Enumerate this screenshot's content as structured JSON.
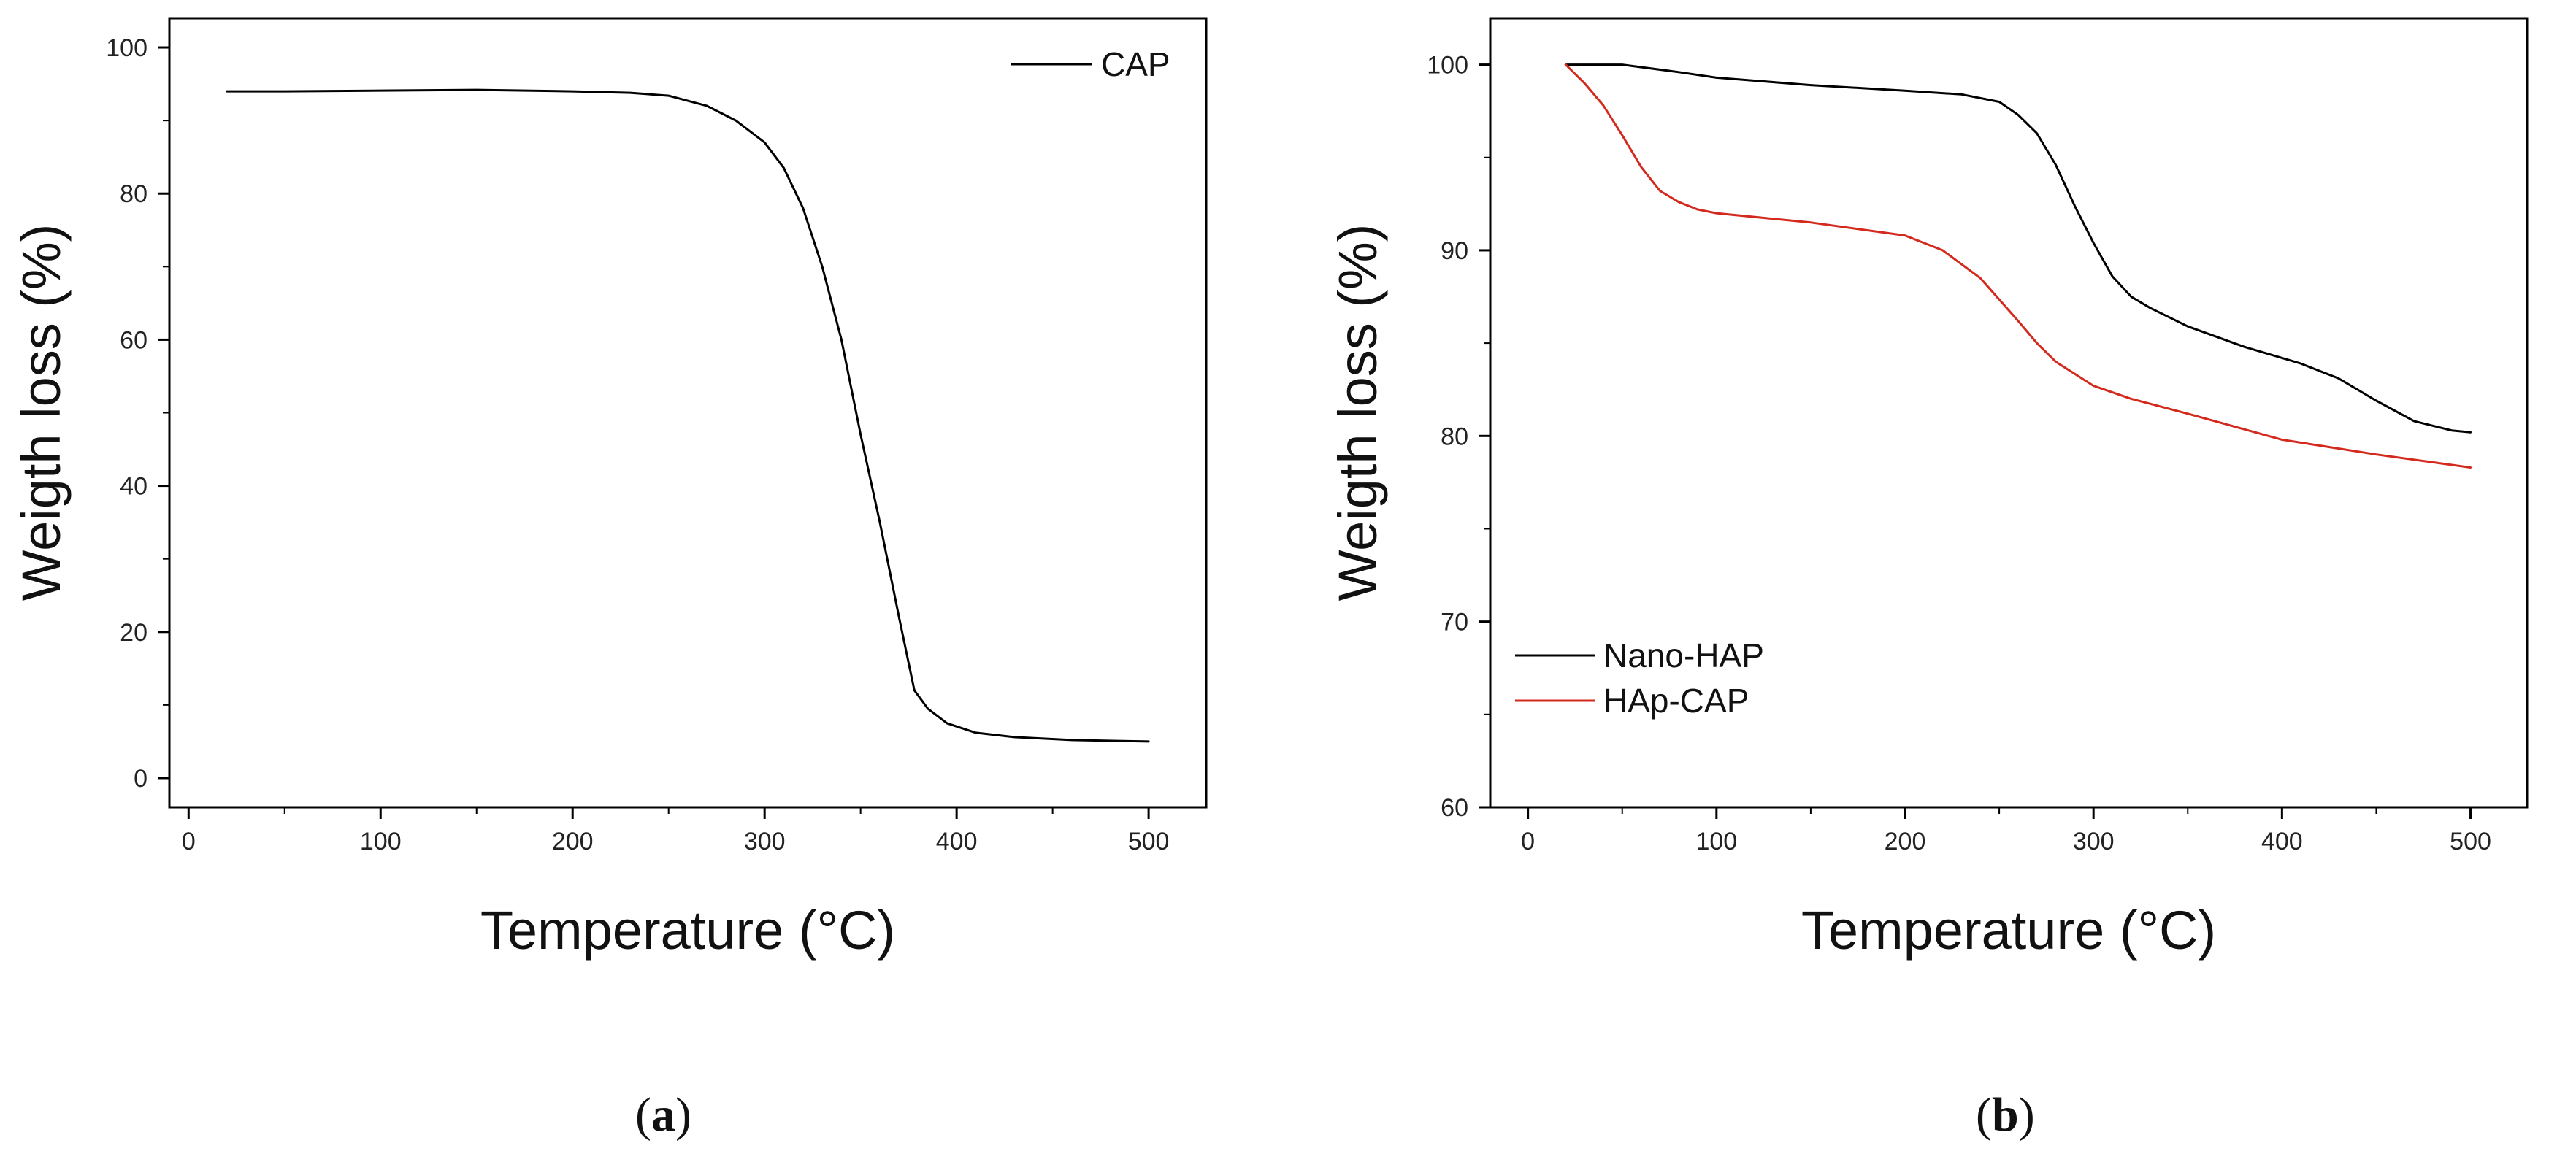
{
  "chart_data": [
    {
      "type": "line",
      "panel": "a",
      "xlabel": "Temperature (°C)",
      "ylabel": "Weigth loss (%)",
      "xlim": [
        -10,
        530
      ],
      "ylim": [
        -4,
        104
      ],
      "xticks": [
        0,
        100,
        200,
        300,
        400,
        500
      ],
      "yticks": [
        0,
        20,
        40,
        60,
        80,
        100
      ],
      "legend_position": "top-right",
      "series": [
        {
          "name": "CAP",
          "color": "#000000",
          "x": [
            20,
            50,
            100,
            150,
            200,
            230,
            250,
            270,
            285,
            300,
            310,
            320,
            330,
            340,
            350,
            360,
            370,
            378,
            385,
            395,
            410,
            430,
            460,
            500
          ],
          "y": [
            94,
            94,
            94.1,
            94.2,
            94,
            93.8,
            93.4,
            92,
            90,
            87,
            83.5,
            78,
            70,
            60,
            47,
            35,
            22,
            12,
            9.5,
            7.5,
            6.2,
            5.6,
            5.2,
            5
          ]
        }
      ]
    },
    {
      "type": "line",
      "panel": "b",
      "xlabel": "Temperature (°C)",
      "ylabel": "Weigth loss (%)",
      "xlim": [
        -20,
        530
      ],
      "ylim": [
        60,
        102.5
      ],
      "xticks": [
        0,
        100,
        200,
        300,
        400,
        500
      ],
      "yticks": [
        60,
        70,
        80,
        90,
        100
      ],
      "legend_position": "bottom-left",
      "series": [
        {
          "name": "Nano-HAP",
          "color": "#000000",
          "x": [
            20,
            30,
            50,
            80,
            100,
            150,
            200,
            230,
            250,
            260,
            270,
            280,
            290,
            300,
            310,
            320,
            330,
            350,
            380,
            410,
            430,
            450,
            470,
            490,
            500
          ],
          "y": [
            100,
            100,
            100,
            99.6,
            99.3,
            98.9,
            98.6,
            98.4,
            98,
            97.3,
            96.3,
            94.6,
            92.4,
            90.4,
            88.6,
            87.5,
            86.9,
            85.9,
            84.8,
            83.9,
            83.1,
            81.9,
            80.8,
            80.3,
            80.2
          ]
        },
        {
          "name": "HAp-CAP",
          "color": "#d42a1e",
          "x": [
            20,
            30,
            40,
            50,
            60,
            70,
            80,
            90,
            100,
            150,
            200,
            220,
            240,
            260,
            270,
            280,
            300,
            320,
            350,
            400,
            450,
            500
          ],
          "y": [
            100,
            99,
            97.8,
            96.2,
            94.5,
            93.2,
            92.6,
            92.2,
            92,
            91.5,
            90.8,
            90,
            88.5,
            86.2,
            85,
            84,
            82.7,
            82,
            81.2,
            79.8,
            79,
            78.3
          ]
        }
      ]
    }
  ],
  "panels": {
    "a": {
      "label": "a"
    },
    "b": {
      "label": "b"
    }
  }
}
